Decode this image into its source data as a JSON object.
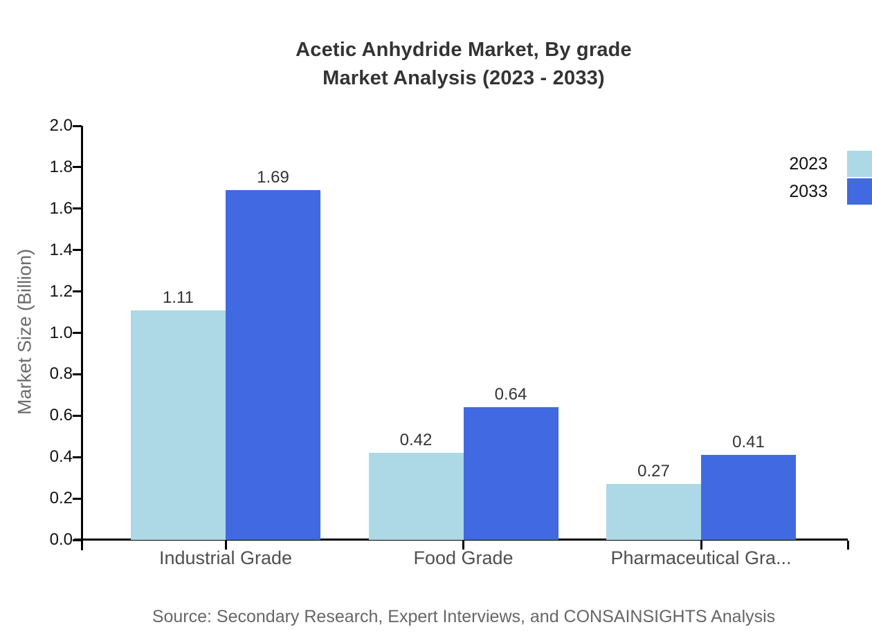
{
  "title": {
    "line1": "Acetic Anhydride Market, By grade",
    "line2": "Market Analysis (2023 - 2033)"
  },
  "source": "Source: Secondary Research, Expert Interviews, and CONSAINSIGHTS Analysis",
  "colors": {
    "series_2023": "#ADD8E6",
    "series_2033": "#4169E1",
    "axis": "#000000",
    "title_text": "#333333",
    "tick_text": "#111111",
    "category_text": "#4f4f4f",
    "muted_text": "#666666"
  },
  "chart_data": {
    "type": "bar",
    "title": "Acetic Anhydride Market, By grade Market Analysis (2023 - 2033)",
    "categories": [
      "Industrial Grade",
      "Food Grade",
      "Pharmaceutical Gra..."
    ],
    "series": [
      {
        "name": "2023",
        "color": "#ADD8E6",
        "values": [
          1.11,
          0.42,
          0.27
        ]
      },
      {
        "name": "2033",
        "color": "#4169E1",
        "values": [
          1.69,
          0.64,
          0.41
        ]
      }
    ],
    "value_labels": [
      [
        "1.11",
        "0.42",
        "0.27"
      ],
      [
        "1.69",
        "0.64",
        "0.41"
      ]
    ],
    "xlabel": "",
    "ylabel": "Market Size (Billion)",
    "ylim": [
      0.0,
      2.0
    ],
    "yticks": [
      "0.0",
      "0.2",
      "0.4",
      "0.6",
      "0.8",
      "1.0",
      "1.2",
      "1.4",
      "1.6",
      "1.8",
      "2.0"
    ],
    "grid": false,
    "legend_position": "top-right"
  }
}
